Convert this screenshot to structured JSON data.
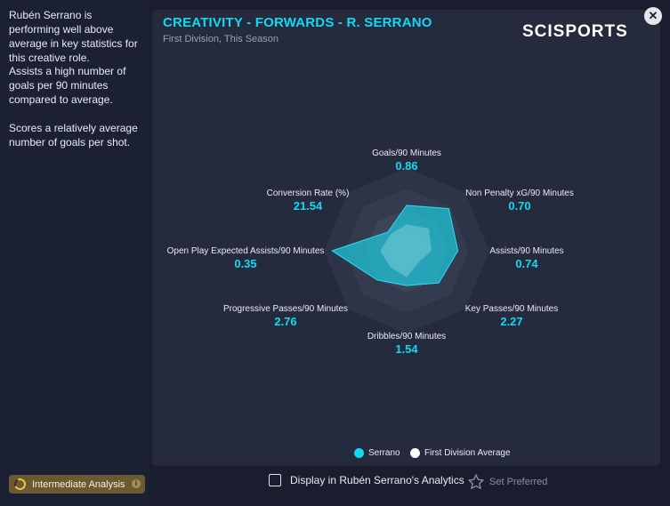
{
  "sidebar": {
    "insights": [
      "Rubén Serrano is performing well above average in key statistics for this creative role.",
      "Assists a high number of goals per 90 minutes compared to average.",
      "Scores a relatively average number of goals per shot."
    ],
    "analysis_button": "Intermediate Analysis",
    "info_glyph": "i"
  },
  "card": {
    "title": "CREATIVITY - FORWARDS - R. SERRANO",
    "subtitle": "First Division, This Season",
    "brand": "SCISPORTS"
  },
  "close_glyph": "✕",
  "chart_data": {
    "type": "radar",
    "axes": [
      {
        "label": "Goals/90 Minutes",
        "value": "0.86"
      },
      {
        "label": "Non Penalty xG/90 Minutes",
        "value": "0.70"
      },
      {
        "label": "Assists/90 Minutes",
        "value": "0.74"
      },
      {
        "label": "Key Passes/90 Minutes",
        "value": "2.27"
      },
      {
        "label": "Dribbles/90 Minutes",
        "value": "1.54"
      },
      {
        "label": "Progressive Passes/90 Minutes",
        "value": "2.76"
      },
      {
        "label": "Open Play Expected Assists/90 Minutes",
        "value": "0.35"
      },
      {
        "label": "Conversion Rate (%)",
        "value": "21.54"
      }
    ],
    "series": [
      {
        "name": "Serrano",
        "color": "#1ec8dc",
        "scores": [
          0.55,
          0.72,
          0.62,
          0.55,
          0.42,
          0.5,
          0.9,
          0.32
        ]
      },
      {
        "name": "First Division Average",
        "color": "#ffffff",
        "scores": [
          0.32,
          0.38,
          0.3,
          0.2,
          0.32,
          0.28,
          0.32,
          0.28
        ]
      }
    ],
    "rings": 4
  },
  "legend": {
    "serrano": "Serrano",
    "average": "First Division Average",
    "serrano_color": "#12d9f2",
    "average_color": "#ffffff"
  },
  "footer": {
    "display_checkbox": "Display in Rubén Serrano's Analytics",
    "set_preferred": "Set Preferred",
    "star_icon": "star-outline-icon"
  }
}
